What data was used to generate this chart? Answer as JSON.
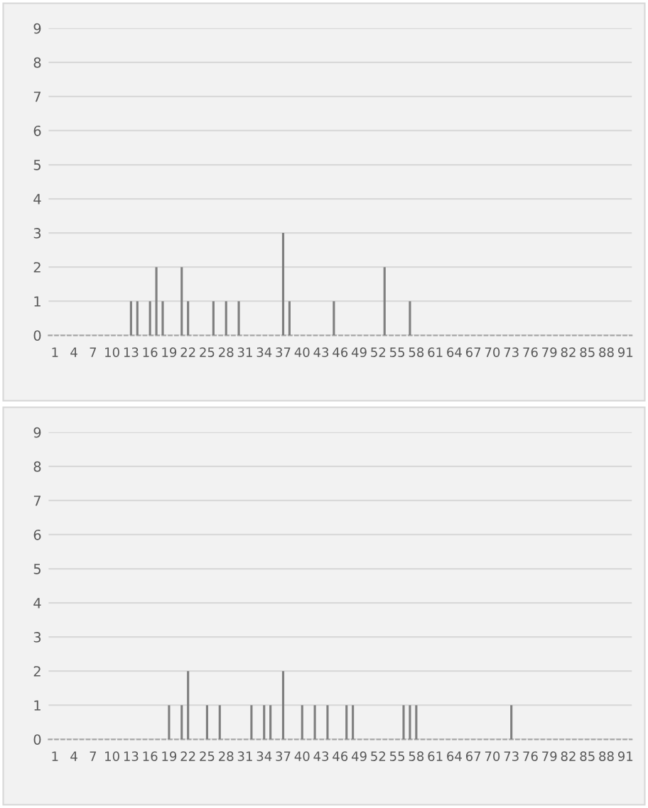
{
  "chart_data": [
    {
      "type": "bar",
      "categories": [
        "1",
        null,
        null,
        "4",
        null,
        null,
        "7",
        null,
        null,
        "10",
        null,
        null,
        "13",
        null,
        null,
        "16",
        null,
        null,
        "19",
        null,
        null,
        "22",
        null,
        null,
        "25",
        null,
        null,
        "28",
        null,
        null,
        "31",
        null,
        null,
        "34",
        null,
        null,
        "37",
        null,
        null,
        "40",
        null,
        null,
        "43",
        null,
        null,
        "46",
        null,
        null,
        "49",
        null,
        null,
        "52",
        null,
        null,
        "55",
        null,
        null,
        "58",
        null,
        null,
        "61",
        null,
        null,
        "64",
        null,
        null,
        "67",
        null,
        null,
        "70",
        null,
        null,
        "73",
        null,
        null,
        "76",
        null,
        null,
        "79",
        null,
        null,
        "82",
        null,
        null,
        "85",
        null,
        null,
        "88",
        null,
        null,
        "91"
      ],
      "values": [
        0,
        0,
        0,
        0,
        0,
        0,
        0,
        0,
        0,
        0,
        0,
        0,
        1,
        1,
        0,
        1,
        2,
        1,
        0,
        0,
        2,
        1,
        0,
        0,
        0,
        1,
        0,
        1,
        0,
        1,
        0,
        0,
        0,
        0,
        0,
        0,
        3,
        1,
        0,
        0,
        0,
        0,
        0,
        0,
        1,
        0,
        0,
        0,
        0,
        0,
        0,
        0,
        2,
        0,
        0,
        0,
        1,
        0,
        0,
        0,
        0,
        0,
        0,
        0,
        0,
        0,
        0,
        0,
        0,
        0,
        0,
        0,
        0,
        0,
        0,
        0,
        0,
        0,
        0,
        0,
        0,
        0,
        0,
        0,
        0,
        0,
        0,
        0,
        0,
        0,
        0
      ],
      "color": "#7f7f7f",
      "ylim": [
        0,
        9
      ],
      "yticks": [
        0,
        1,
        2,
        3,
        4,
        5,
        6,
        7,
        8,
        9
      ],
      "grid": "y"
    },
    {
      "type": "bar",
      "categories": [
        "1",
        null,
        null,
        "4",
        null,
        null,
        "7",
        null,
        null,
        "10",
        null,
        null,
        "13",
        null,
        null,
        "16",
        null,
        null,
        "19",
        null,
        null,
        "22",
        null,
        null,
        "25",
        null,
        null,
        "28",
        null,
        null,
        "31",
        null,
        null,
        "34",
        null,
        null,
        "37",
        null,
        null,
        "40",
        null,
        null,
        "43",
        null,
        null,
        "46",
        null,
        null,
        "49",
        null,
        null,
        "52",
        null,
        null,
        "55",
        null,
        null,
        "58",
        null,
        null,
        "61",
        null,
        null,
        "64",
        null,
        null,
        "67",
        null,
        null,
        "70",
        null,
        null,
        "73",
        null,
        null,
        "76",
        null,
        null,
        "79",
        null,
        null,
        "82",
        null,
        null,
        "85",
        null,
        null,
        "88",
        null,
        null,
        "91"
      ],
      "values": [
        0,
        0,
        0,
        0,
        0,
        0,
        0,
        0,
        0,
        0,
        0,
        0,
        0,
        0,
        0,
        0,
        0,
        0,
        1,
        0,
        1,
        2,
        0,
        0,
        1,
        0,
        1,
        0,
        0,
        0,
        0,
        1,
        0,
        1,
        1,
        0,
        2,
        0,
        0,
        1,
        0,
        1,
        0,
        1,
        0,
        0,
        1,
        1,
        0,
        0,
        0,
        0,
        0,
        0,
        0,
        1,
        1,
        1,
        0,
        0,
        0,
        0,
        0,
        0,
        0,
        0,
        0,
        0,
        0,
        0,
        0,
        0,
        1,
        0,
        0,
        0,
        0,
        0,
        0,
        0,
        0,
        0,
        0,
        0,
        0,
        0,
        0,
        0,
        0,
        0,
        0
      ],
      "color": "#7f7f7f",
      "ylim": [
        0,
        9
      ],
      "yticks": [
        0,
        1,
        2,
        3,
        4,
        5,
        6,
        7,
        8,
        9
      ],
      "grid": "y"
    }
  ]
}
